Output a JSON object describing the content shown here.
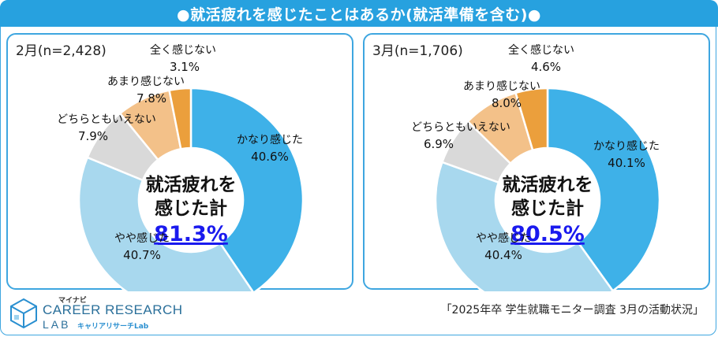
{
  "title": "●就活疲れを感じたことはあるか(就活準備を含む)●",
  "colors": {
    "accent": "#27a1df",
    "kanari": "#3eb1e8",
    "yaya": "#a8d8ee",
    "dochira": "#d9d9d9",
    "amari": "#f3c189",
    "mattaku": "#eb9f3c",
    "total_link": "#1a1aee"
  },
  "chart_data": [
    {
      "type": "pie",
      "panel_label": "2月(n=2,428)",
      "center_label_line1": "就活疲れを",
      "center_label_line2": "感じた計",
      "center_value": "81.3%",
      "slices": [
        {
          "name": "かなり感じた",
          "value": 40.6,
          "label": "40.6%"
        },
        {
          "name": "やや感じた",
          "value": 40.7,
          "label": "40.7%"
        },
        {
          "name": "どちらともいえない",
          "value": 7.9,
          "label": "7.9%"
        },
        {
          "name": "あまり感じない",
          "value": 7.8,
          "label": "7.8%"
        },
        {
          "name": "全く感じない",
          "value": 3.1,
          "label": "3.1%"
        }
      ]
    },
    {
      "type": "pie",
      "panel_label": "3月(n=1,706)",
      "center_label_line1": "就活疲れを",
      "center_label_line2": "感じた計",
      "center_value": "80.5%",
      "slices": [
        {
          "name": "かなり感じた",
          "value": 40.1,
          "label": "40.1%"
        },
        {
          "name": "やや感じた",
          "value": 40.4,
          "label": "40.4%"
        },
        {
          "name": "どちらともいえない",
          "value": 6.9,
          "label": "6.9%"
        },
        {
          "name": "あまり感じない",
          "value": 8.0,
          "label": "8.0%"
        },
        {
          "name": "全く感じない",
          "value": 4.6,
          "label": "4.6%"
        }
      ]
    }
  ],
  "logo": {
    "small": "マイナビ",
    "main": "CAREER RESEARCH",
    "lab": "LAB",
    "kana": "キャリアリサーチLab"
  },
  "source": "「2025年卒 学生就職モニター調査 3月の活動状況」"
}
